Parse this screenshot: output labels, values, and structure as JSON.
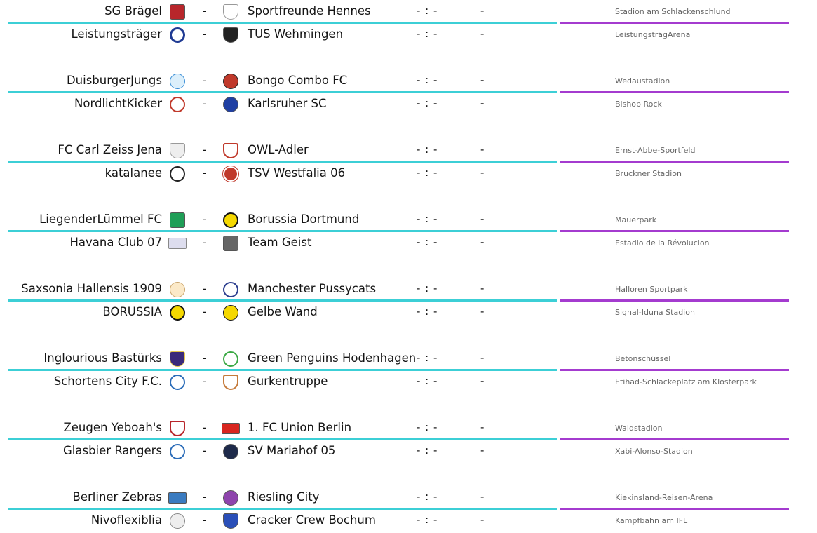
{
  "matches": [
    {
      "home": "SG Brägel",
      "home_icon": "sg-braegel-crest-icon",
      "away": "Sportfreunde Hennes",
      "away_icon": "sportfreunde-hennes-crest-icon",
      "dash": "-",
      "score": "- : -",
      "result": "-",
      "venue": "Stadion am Schlackenschlund"
    },
    {
      "home": "Leistungsträger",
      "home_icon": "leistungstraeger-crest-icon",
      "away": "TUS Wehmingen",
      "away_icon": "tus-wehmingen-crest-icon",
      "dash": "-",
      "score": "- : -",
      "result": "-",
      "venue": "LeistungsträgArena"
    },
    {
      "home": "DuisburgerJungs",
      "home_icon": "duisburgerjungs-crest-icon",
      "away": "Bongo Combo FC",
      "away_icon": "bongo-combo-crest-icon",
      "dash": "-",
      "score": "- : -",
      "result": "-",
      "venue": "Wedaustadion"
    },
    {
      "home": "NordlichtKicker",
      "home_icon": "nordlichtkicker-crest-icon",
      "away": "Karlsruher SC",
      "away_icon": "ksc-crest-icon",
      "dash": "-",
      "score": "- : -",
      "result": "-",
      "venue": "Bishop Rock"
    },
    {
      "home": "FC Carl Zeiss Jena",
      "home_icon": "carl-zeiss-jena-crest-icon",
      "away": "OWL-Adler",
      "away_icon": "owl-adler-crest-icon",
      "dash": "-",
      "score": "- : -",
      "result": "-",
      "venue": "Ernst-Abbe-Sportfeld"
    },
    {
      "home": "katalanee",
      "home_icon": "katalanee-crest-icon",
      "away": "TSV Westfalia 06",
      "away_icon": "tsv-westfalia-crest-icon",
      "dash": "-",
      "score": "- : -",
      "result": "-",
      "venue": "Bruckner Stadion"
    },
    {
      "home": "LiegenderLümmel FC",
      "home_icon": "liegenderluemmel-crest-icon",
      "away": "Borussia Dortmund",
      "away_icon": "bvb-crest-icon",
      "dash": "-",
      "score": "- : -",
      "result": "-",
      "venue": "Mauerpark"
    },
    {
      "home": "Havana Club 07",
      "home_icon": "havana-club-crest-icon",
      "away": "Team Geist",
      "away_icon": "team-geist-crest-icon",
      "dash": "-",
      "score": "- : -",
      "result": "-",
      "venue": "Estadio de la Révolucion"
    },
    {
      "home": "Saxsonia Hallensis 1909",
      "home_icon": "saxsonia-hallensis-crest-icon",
      "away": "Manchester Pussycats",
      "away_icon": "manchester-pussycats-crest-icon",
      "dash": "-",
      "score": "- : -",
      "result": "-",
      "venue": "Halloren Sportpark"
    },
    {
      "home": "BORUSSIA",
      "home_icon": "borussia-bvb-crest-icon",
      "away": "Gelbe Wand",
      "away_icon": "gelbe-wand-crest-icon",
      "dash": "-",
      "score": "- : -",
      "result": "-",
      "venue": "Signal-Iduna Stadion"
    },
    {
      "home": "Inglourious Bastürks",
      "home_icon": "inglourious-basturks-crest-icon",
      "away": "Green Penguins Hodenhagen",
      "away_icon": "green-penguins-crest-icon",
      "dash": "-",
      "score": "- : -",
      "result": "-",
      "venue": "Betonschüssel"
    },
    {
      "home": "Schortens City F.C.",
      "home_icon": "schortens-city-crest-icon",
      "away": "Gurkentruppe",
      "away_icon": "gurkentruppe-crest-icon",
      "dash": "-",
      "score": "- : -",
      "result": "-",
      "venue": "Etihad-Schlackeplatz am Klosterpark"
    },
    {
      "home": "Zeugen Yeboah's",
      "home_icon": "zeugen-yeboah-crest-icon",
      "away": "1. FC Union Berlin",
      "away_icon": "union-berlin-crest-icon",
      "dash": "-",
      "score": "- : -",
      "result": "-",
      "venue": "Waldstadion"
    },
    {
      "home": "Glasbier Rangers",
      "home_icon": "glasbier-rangers-crest-icon",
      "away": "SV Mariahof 05",
      "away_icon": "sv-mariahof-crest-icon",
      "dash": "-",
      "score": "- : -",
      "result": "-",
      "venue": "Xabi-Alonso-Stadion"
    },
    {
      "home": "Berliner Zebras",
      "home_icon": "berliner-zebras-crest-icon",
      "away": "Riesling City",
      "away_icon": "riesling-city-crest-icon",
      "dash": "-",
      "score": "- : -",
      "result": "-",
      "venue": "Kiekinsland-Reisen-Arena"
    },
    {
      "home": "Nivoflexiblia",
      "home_icon": "nivoflexiblia-crest-icon",
      "away": "Cracker Crew Bochum",
      "away_icon": "cracker-crew-crest-icon",
      "dash": "-",
      "score": "- : -",
      "result": "-",
      "venue": "Kampfbahn am IFL"
    }
  ],
  "colors": {
    "separator_left": "#3ccfd6",
    "separator_right": "#a43bcf",
    "text": "#141414",
    "venue_text": "#666666"
  }
}
